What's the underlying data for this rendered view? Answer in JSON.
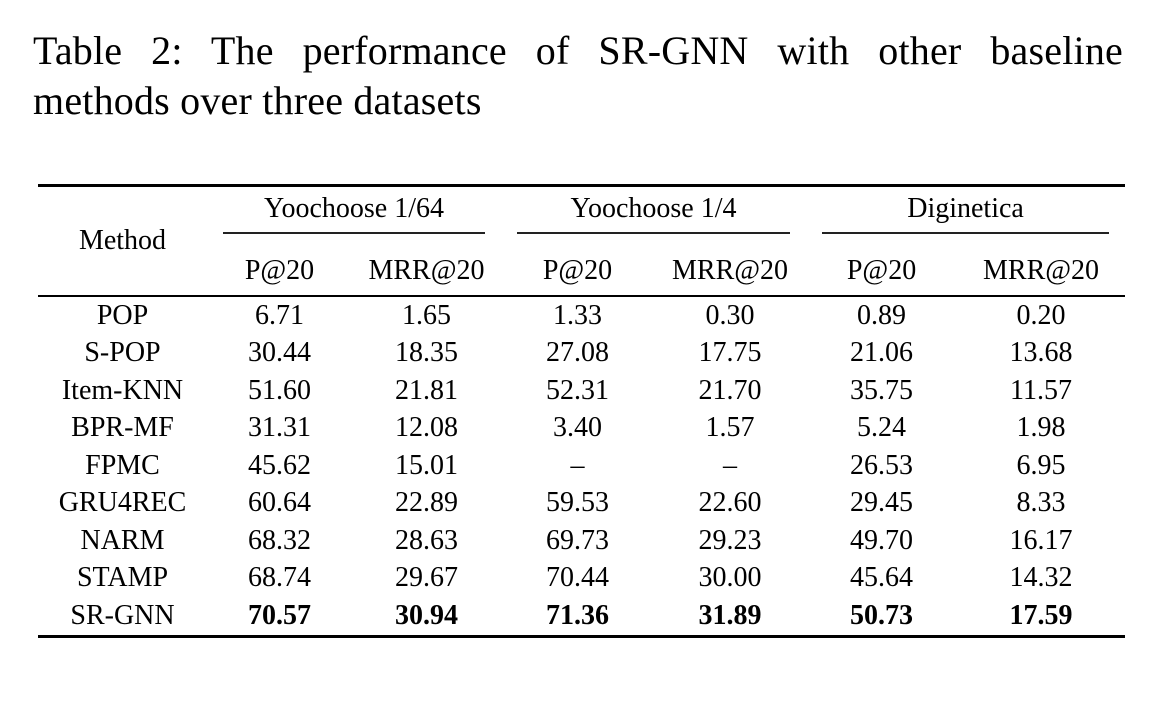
{
  "title": {
    "line1": "Table 2: The performance of SR-GNN with other baseline",
    "line2": "methods over three datasets"
  },
  "table": {
    "method_header": "Method",
    "groups": [
      {
        "label": "Yoochoose 1/64",
        "metrics": [
          "P@20",
          "MRR@20"
        ]
      },
      {
        "label": "Yoochoose 1/4",
        "metrics": [
          "P@20",
          "MRR@20"
        ]
      },
      {
        "label": "Diginetica",
        "metrics": [
          "P@20",
          "MRR@20"
        ]
      }
    ],
    "rows": [
      {
        "method": "POP",
        "values": [
          "6.71",
          "1.65",
          "1.33",
          "0.30",
          "0.89",
          "0.20"
        ],
        "bold": false
      },
      {
        "method": "S-POP",
        "values": [
          "30.44",
          "18.35",
          "27.08",
          "17.75",
          "21.06",
          "13.68"
        ],
        "bold": false
      },
      {
        "method": "Item-KNN",
        "values": [
          "51.60",
          "21.81",
          "52.31",
          "21.70",
          "35.75",
          "11.57"
        ],
        "bold": false
      },
      {
        "method": "BPR-MF",
        "values": [
          "31.31",
          "12.08",
          "3.40",
          "1.57",
          "5.24",
          "1.98"
        ],
        "bold": false
      },
      {
        "method": "FPMC",
        "values": [
          "45.62",
          "15.01",
          "–",
          "–",
          "26.53",
          "6.95"
        ],
        "bold": false
      },
      {
        "method": "GRU4REC",
        "values": [
          "60.64",
          "22.89",
          "59.53",
          "22.60",
          "29.45",
          "8.33"
        ],
        "bold": false
      },
      {
        "method": "NARM",
        "values": [
          "68.32",
          "28.63",
          "69.73",
          "29.23",
          "49.70",
          "16.17"
        ],
        "bold": false
      },
      {
        "method": "STAMP",
        "values": [
          "68.74",
          "29.67",
          "70.44",
          "30.00",
          "45.64",
          "14.32"
        ],
        "bold": false
      },
      {
        "method": "SR-GNN",
        "values": [
          "70.57",
          "30.94",
          "71.36",
          "31.89",
          "50.73",
          "17.59"
        ],
        "bold": true
      }
    ]
  },
  "chart_data": {
    "type": "table",
    "title": "Table 2: The performance of SR-GNN with other baseline methods over three datasets",
    "column_groups": [
      "Yoochoose 1/64",
      "Yoochoose 1/4",
      "Diginetica"
    ],
    "columns": [
      "Method",
      "Yoochoose 1/64 P@20",
      "Yoochoose 1/64 MRR@20",
      "Yoochoose 1/4 P@20",
      "Yoochoose 1/4 MRR@20",
      "Diginetica P@20",
      "Diginetica MRR@20"
    ],
    "rows": [
      [
        "POP",
        6.71,
        1.65,
        1.33,
        0.3,
        0.89,
        0.2
      ],
      [
        "S-POP",
        30.44,
        18.35,
        27.08,
        17.75,
        21.06,
        13.68
      ],
      [
        "Item-KNN",
        51.6,
        21.81,
        52.31,
        21.7,
        35.75,
        11.57
      ],
      [
        "BPR-MF",
        31.31,
        12.08,
        3.4,
        1.57,
        5.24,
        1.98
      ],
      [
        "FPMC",
        45.62,
        15.01,
        null,
        null,
        26.53,
        6.95
      ],
      [
        "GRU4REC",
        60.64,
        22.89,
        59.53,
        22.6,
        29.45,
        8.33
      ],
      [
        "NARM",
        68.32,
        28.63,
        69.73,
        29.23,
        49.7,
        16.17
      ],
      [
        "STAMP",
        68.74,
        29.67,
        70.44,
        30.0,
        45.64,
        14.32
      ],
      [
        "SR-GNN",
        70.57,
        30.94,
        71.36,
        31.89,
        50.73,
        17.59
      ]
    ],
    "best_row": "SR-GNN"
  }
}
